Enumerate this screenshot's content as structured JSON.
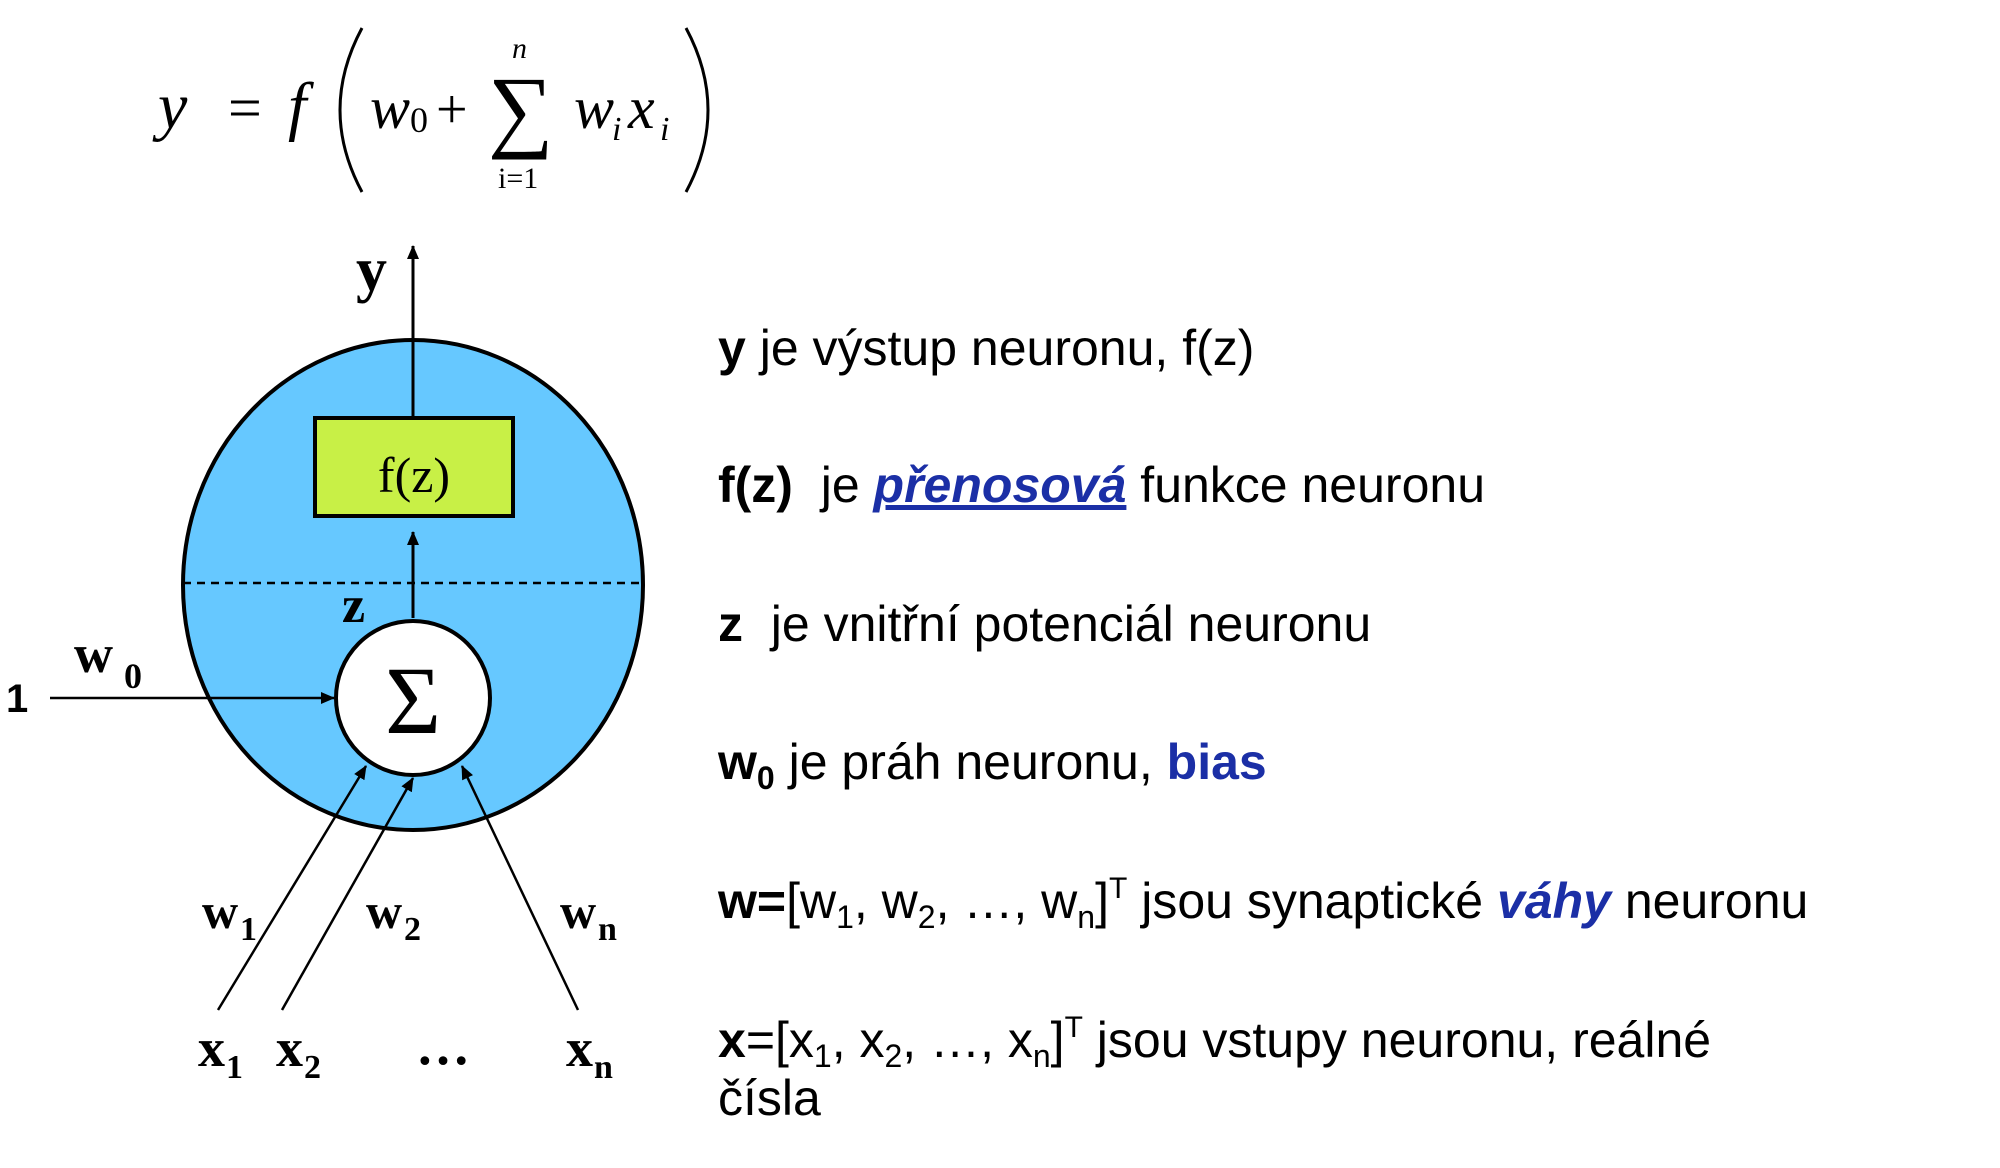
{
  "formula": {
    "lhs": "y",
    "equals": "=",
    "func": "f",
    "w0_w": "w",
    "w0_sub": "0",
    "plus": "+",
    "sum_symbol": "∑",
    "sum_upper": "n",
    "sum_lower": "i=1",
    "term_w": "w",
    "term_w_sub": "i",
    "term_x": "x",
    "term_x_sub": "i"
  },
  "diagram": {
    "colors": {
      "neuron_fill": "#66c8ff",
      "fz_box_fill": "#c8f046",
      "summation_fill": "#ffffff",
      "stroke": "#000000"
    },
    "output_label": "y",
    "activation_label": "f(z)",
    "potential_label": "z",
    "summation_symbol": "Σ",
    "bias_input": "1",
    "bias_weight": "w",
    "bias_weight_sub": "0",
    "weights": [
      {
        "w": "w",
        "sub": "1"
      },
      {
        "w": "w",
        "sub": "2"
      },
      {
        "w": "w",
        "sub": "n"
      }
    ],
    "inputs": [
      {
        "x": "x",
        "sub": "1"
      },
      {
        "x": "x",
        "sub": "2"
      },
      {
        "x": "x",
        "sub": "n"
      }
    ],
    "ellipsis": "…"
  },
  "descriptions": {
    "y": {
      "symbol": "y",
      "text": " je výstup neuronu, f(z)"
    },
    "fz": {
      "symbol": "f(z)",
      "pre": "  je ",
      "highlight": "přenosová",
      "post": " funkce neuronu"
    },
    "z": {
      "symbol": "z",
      "text": "  je vnitřní potenciál neuronu"
    },
    "w0": {
      "symbol": "w",
      "sub": "0",
      "pre": " je práh neuronu, ",
      "highlight": "bias"
    },
    "w": {
      "symbol": "w=",
      "vector": "[w",
      "s1": "1",
      "c1": ", w",
      "s2": "2",
      "c2": ", …, w",
      "sn": "n",
      "close": "]",
      "sup": "T",
      "pre": " jsou synaptické ",
      "highlight": "váhy",
      "post": " neuronu"
    },
    "x": {
      "symbol": "x",
      "vector": "=[x",
      "s1": "1",
      "c1": ", x",
      "s2": "2",
      "c2": ", …, x",
      "sn": "n",
      "close": "]",
      "sup": "T",
      "line1": " jsou vstupy neuronu, reálné",
      "line2": "čísla"
    }
  }
}
